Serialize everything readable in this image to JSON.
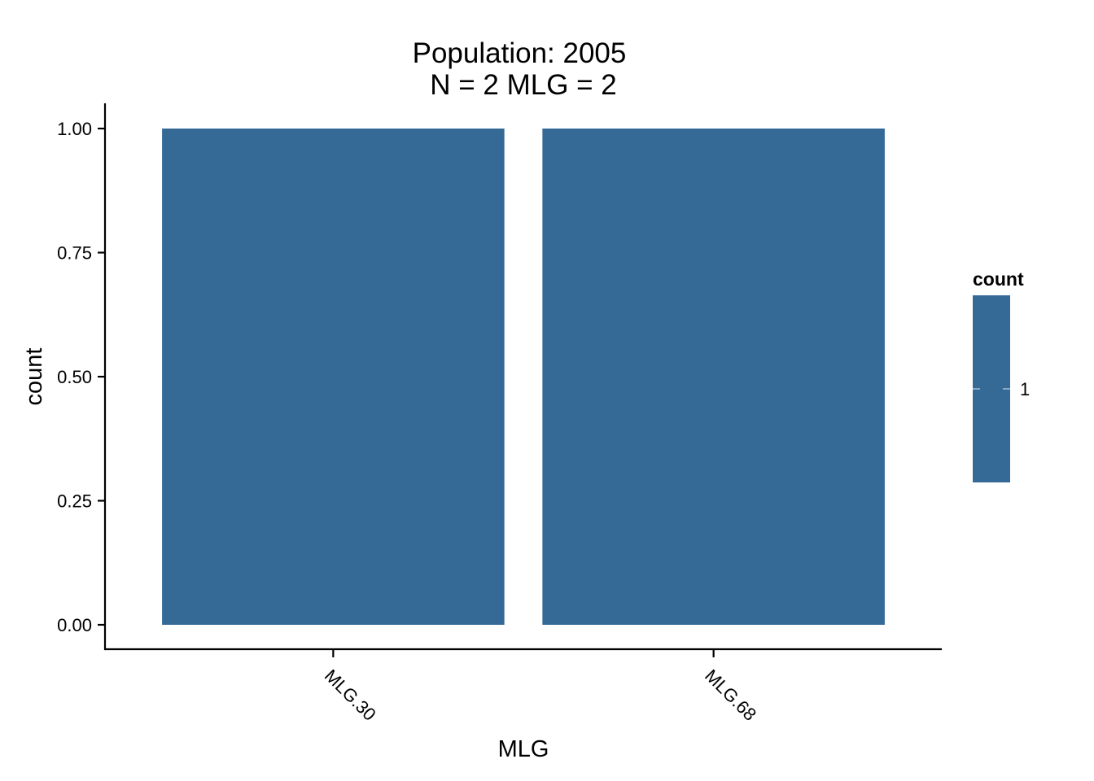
{
  "chart_data": {
    "type": "bar",
    "title": "Population: 2005",
    "subtitle": "N = 2 MLG = 2",
    "xlabel": "MLG",
    "ylabel": "count",
    "categories": [
      "MLG.30",
      "MLG.68"
    ],
    "values": [
      1,
      1
    ],
    "ylim": [
      0,
      1
    ],
    "yticks": [
      0,
      0.25,
      0.5,
      0.75,
      1
    ],
    "ytick_labels": [
      "0.00",
      "0.25",
      "0.50",
      "0.75",
      "1.00"
    ],
    "grid": false,
    "bar_color": "#356A96",
    "legend": {
      "title": "count",
      "placement": "right",
      "entries": [
        "1"
      ],
      "colorbar_color": "#356A96"
    }
  }
}
